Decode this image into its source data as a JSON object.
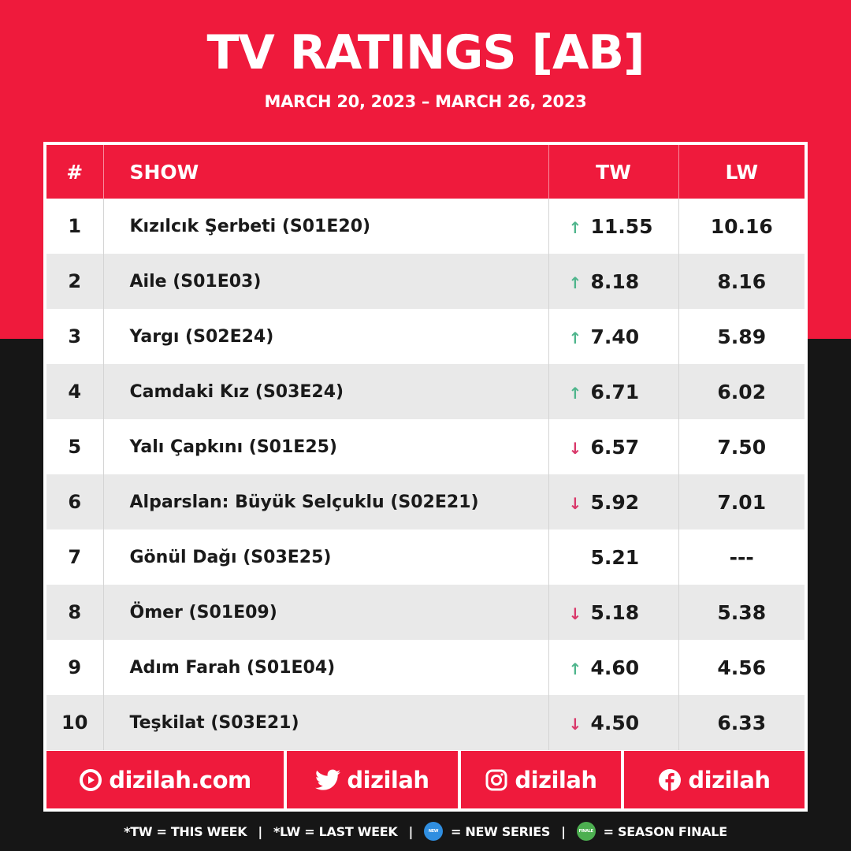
{
  "header": {
    "title": "TV RATINGS [AB]",
    "date_range": "MARCH 20, 2023 – MARCH 26, 2023"
  },
  "table": {
    "columns": {
      "rank": "#",
      "show": "SHOW",
      "tw": "TW",
      "lw": "LW"
    },
    "rows": [
      {
        "rank": "1",
        "show": "Kızılcık Şerbeti (S01E20)",
        "trend": "up",
        "tw": "11.55",
        "lw": "10.16"
      },
      {
        "rank": "2",
        "show": "Aile (S01E03)",
        "trend": "up",
        "tw": "8.18",
        "lw": "8.16"
      },
      {
        "rank": "3",
        "show": "Yargı (S02E24)",
        "trend": "up",
        "tw": "7.40",
        "lw": "5.89"
      },
      {
        "rank": "4",
        "show": "Camdaki Kız (S03E24)",
        "trend": "up",
        "tw": "6.71",
        "lw": "6.02"
      },
      {
        "rank": "5",
        "show": "Yalı Çapkını (S01E25)",
        "trend": "down",
        "tw": "6.57",
        "lw": "7.50"
      },
      {
        "rank": "6",
        "show": "Alparslan: Büyük Selçuklu (S02E21)",
        "trend": "down",
        "tw": "5.92",
        "lw": "7.01"
      },
      {
        "rank": "7",
        "show": "Gönül Dağı (S03E25)",
        "trend": "none",
        "tw": "5.21",
        "lw": "---"
      },
      {
        "rank": "8",
        "show": "Ömer (S01E09)",
        "trend": "down",
        "tw": "5.18",
        "lw": "5.38"
      },
      {
        "rank": "9",
        "show": "Adım Farah (S01E04)",
        "trend": "up",
        "tw": "4.60",
        "lw": "4.56"
      },
      {
        "rank": "10",
        "show": "Teşkilat (S03E21)",
        "trend": "down",
        "tw": "4.50",
        "lw": "6.33"
      }
    ]
  },
  "footer": {
    "website": "dizilah.com",
    "twitter": "dizilah",
    "instagram": "dizilah",
    "facebook": "dizilah"
  },
  "legend": {
    "tw": "*TW = THIS WEEK",
    "lw": "*LW = LAST WEEK",
    "new_series": "= NEW SERIES",
    "new_badge_text": "NEW",
    "season_finale": "= SEASON FINALE",
    "finale_badge_text": "FINALE",
    "separator": "|"
  },
  "colors": {
    "brand_red": "#ef1a3c",
    "dark_bg": "#161616",
    "trend_up": "#4fb58c",
    "trend_down": "#d9386a",
    "new_badge": "#2f8ee0",
    "finale_badge": "#4caf50"
  },
  "icons": {
    "up": "arrow-up-icon",
    "down": "arrow-down-icon",
    "website": "dizilah-logo-icon",
    "twitter": "twitter-bird-icon",
    "instagram": "instagram-icon",
    "facebook": "facebook-icon"
  }
}
